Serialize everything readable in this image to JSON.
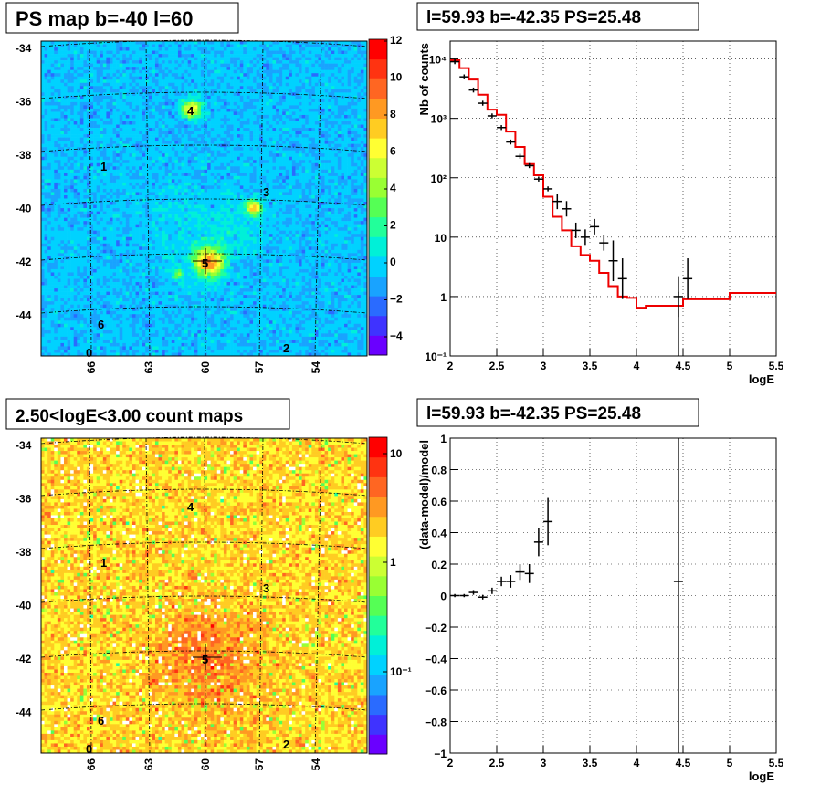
{
  "chart_data": [
    {
      "type": "heatmap",
      "title": "PS map b=-40 l=60",
      "x_ticks": [
        "66",
        "63",
        "60",
        "57",
        "54"
      ],
      "y_ticks": [
        "-34",
        "-36",
        "-38",
        "-40",
        "-42",
        "-44"
      ],
      "colorbar_ticks": [
        "12",
        "10",
        "8",
        "6",
        "4",
        "2",
        "0",
        "−2",
        "−4"
      ],
      "colorbar_range": [
        -5,
        12
      ],
      "sources": [
        {
          "label": "0",
          "l": 66.1,
          "b": -45.9
        },
        {
          "label": "1",
          "l": 65.6,
          "b": -38.6
        },
        {
          "label": "2",
          "l": 55.6,
          "b": -45.6
        },
        {
          "label": "3",
          "l": 56.5,
          "b": -39.7
        },
        {
          "label": "4",
          "l": 60.8,
          "b": -36.3
        },
        {
          "label": "5",
          "l": 59.9,
          "b": -42.3
        },
        {
          "label": "6",
          "l": 65.6,
          "b": -44.6
        }
      ]
    },
    {
      "type": "line",
      "title": "l=59.93 b=-42.35 PS=25.48",
      "xlabel": "logE",
      "ylabel": "Nb of counts",
      "xlim": [
        2,
        5.5
      ],
      "ylim": [
        0.1,
        20000
      ],
      "yscale": "log",
      "grid": true,
      "x_ticks": [
        "2",
        "2.5",
        "3",
        "3.5",
        "4",
        "4.5",
        "5",
        "5.5"
      ],
      "y_ticks": [
        "10⁻¹",
        "1",
        "10",
        "10²",
        "10³",
        "10⁴"
      ],
      "model_color": "#ee0000",
      "series": [
        {
          "x": [
            2.05,
            2.15,
            2.25,
            2.35,
            2.45,
            2.55,
            2.65,
            2.75,
            2.85,
            2.95,
            3.05,
            3.15,
            3.25,
            3.35,
            3.45,
            3.55,
            3.65,
            3.75,
            3.85,
            3.95,
            4.45,
            4.55
          ],
          "values": [
            9000,
            5000,
            3000,
            1800,
            1100,
            700,
            400,
            230,
            160,
            95,
            65,
            40,
            30,
            13,
            10,
            15,
            8,
            4,
            2,
            null,
            1,
            2
          ]
        },
        {
          "x": [
            2.0,
            2.1,
            2.2,
            2.3,
            2.4,
            2.5,
            2.6,
            2.7,
            2.8,
            2.9,
            3.0,
            3.1,
            3.2,
            3.3,
            3.4,
            3.5,
            3.6,
            3.7,
            3.8,
            3.9,
            4.0,
            4.1,
            4.5,
            5.0,
            5.5
          ],
          "values": [
            9500,
            7000,
            4500,
            2500,
            1400,
            1150,
            600,
            330,
            170,
            110,
            48,
            22,
            13,
            7,
            5,
            4,
            2.5,
            1.5,
            1,
            0.95,
            0.65,
            0.7,
            0.9,
            1.15,
            1.4
          ]
        }
      ]
    },
    {
      "type": "heatmap",
      "title": "2.50<logE<3.00 count maps",
      "x_ticks": [
        "66",
        "63",
        "60",
        "57",
        "54"
      ],
      "y_ticks": [
        "-34",
        "-36",
        "-38",
        "-40",
        "-42",
        "-44"
      ],
      "colorbar_ticks": [
        "10",
        "1",
        "10⁻¹"
      ],
      "colorbar_scale": "log"
    },
    {
      "type": "scatter",
      "title": "l=59.93 b=-42.35 PS=25.48",
      "xlabel": "logE",
      "ylabel": "(data-model)/model",
      "xlim": [
        2,
        5.5
      ],
      "ylim": [
        -1,
        1
      ],
      "grid": true,
      "x_ticks": [
        "2",
        "2.5",
        "3",
        "3.5",
        "4",
        "4.5",
        "5",
        "5.5"
      ],
      "y_ticks": [
        "1",
        "0.8",
        "0.6",
        "0.4",
        "0.2",
        "0",
        "−0.2",
        "−0.4",
        "−0.6",
        "−0.8",
        "−1"
      ],
      "series": [
        {
          "x": [
            2.05,
            2.15,
            2.25,
            2.35,
            2.45,
            2.55,
            2.65,
            2.75,
            2.85,
            2.95,
            3.05,
            4.45
          ],
          "values": [
            0.0,
            0.0,
            0.02,
            -0.01,
            0.03,
            0.09,
            0.09,
            0.15,
            0.14,
            0.34,
            0.47,
            0.09
          ],
          "errors": [
            0.01,
            0.01,
            0.015,
            0.015,
            0.02,
            0.03,
            0.04,
            0.05,
            0.06,
            0.09,
            0.15,
            1.2
          ]
        }
      ]
    }
  ]
}
